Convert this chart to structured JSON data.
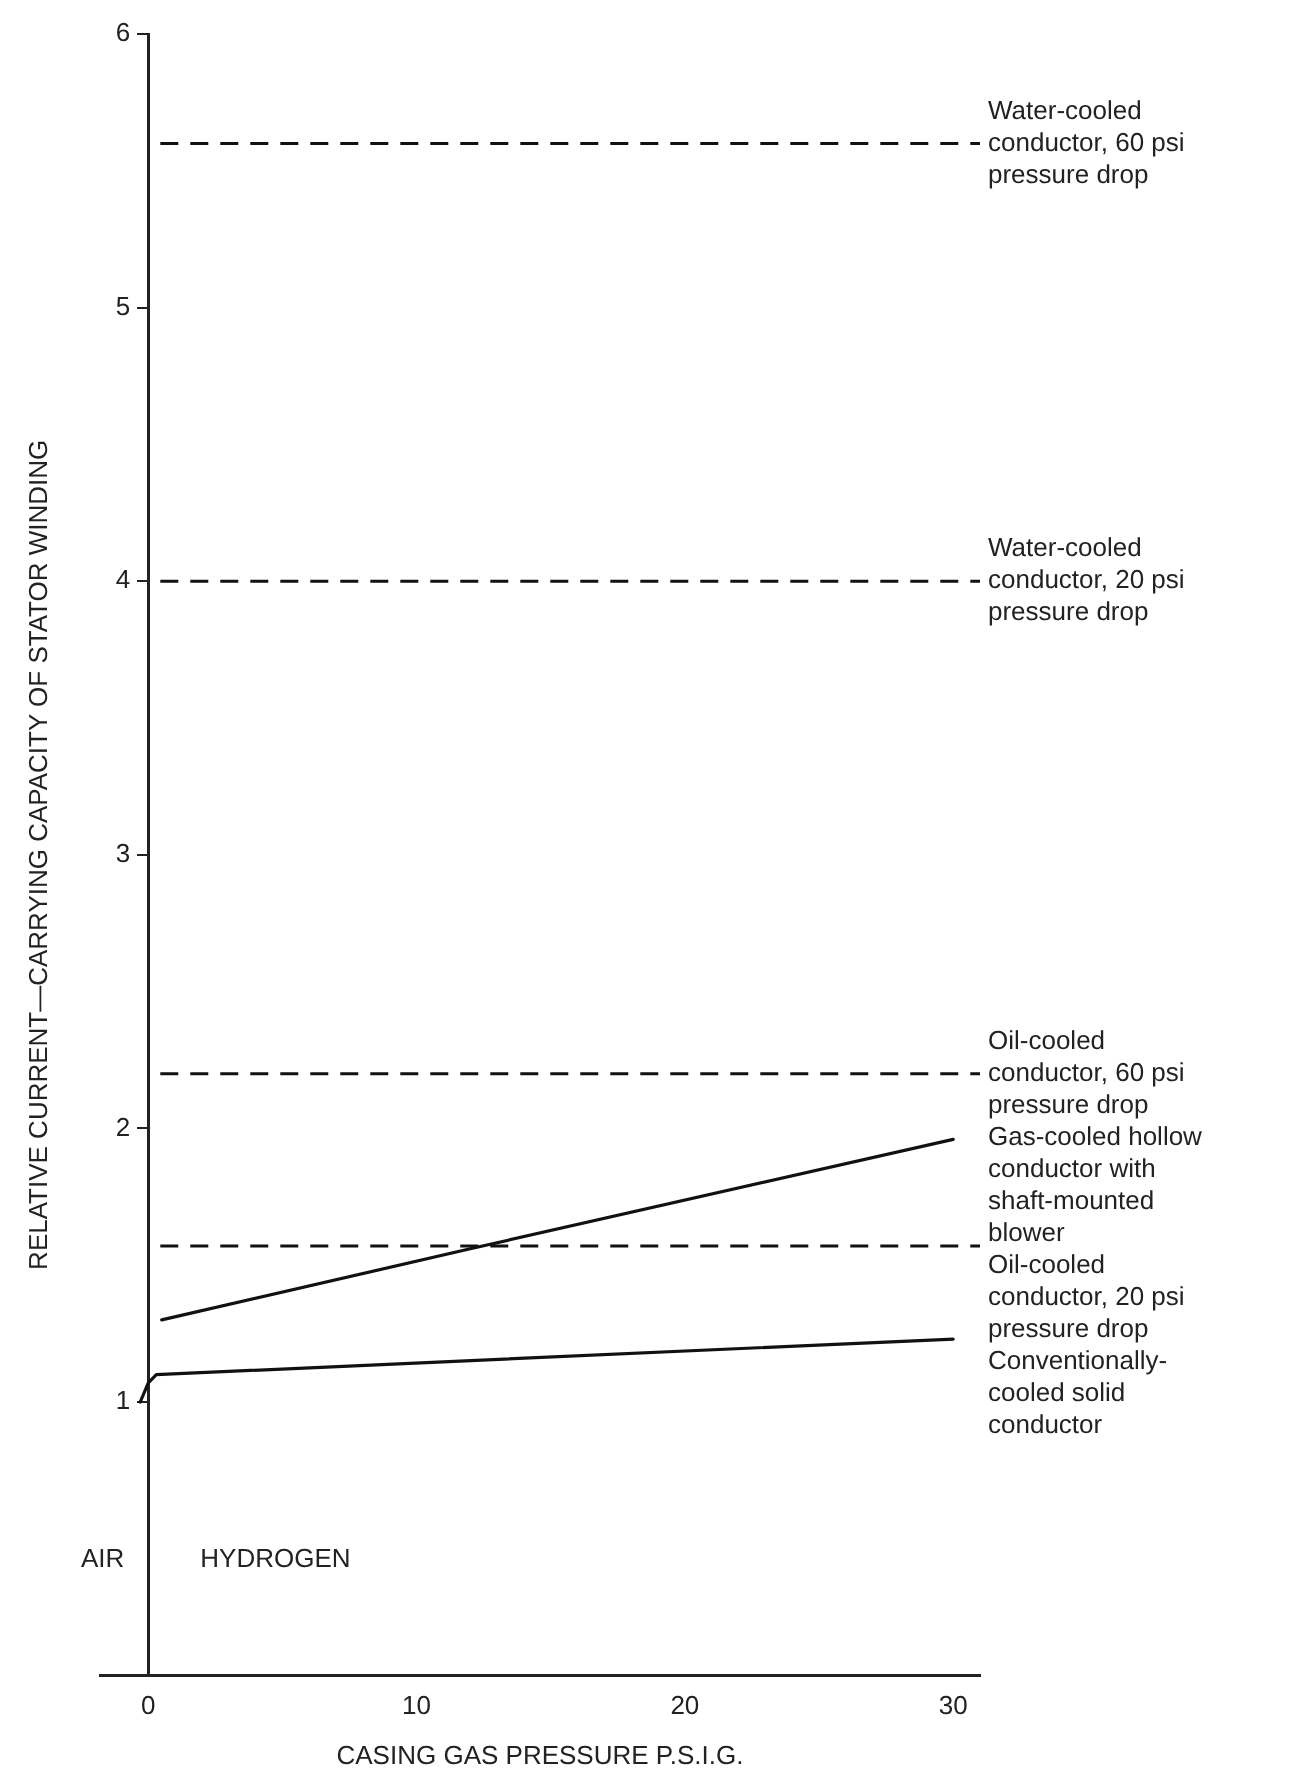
{
  "chart_data": {
    "type": "line",
    "xlabel": "CASING GAS PRESSURE P.S.I.G.",
    "ylabel": "RELATIVE CURRENT—CARRYING CAPACITY OF STATOR WINDING",
    "xlim": [
      -1.8,
      31
    ],
    "xticks": [
      0,
      10,
      20,
      30
    ],
    "ylim": [
      0,
      6
    ],
    "yticks": [
      1,
      2,
      3,
      4,
      5,
      6
    ],
    "grid": false,
    "legend": false,
    "marker": "none",
    "line_style": "solid",
    "series": [
      {
        "name": "Gas-cooled hollow conductor with shaft-mounted blower",
        "color": "#111111",
        "x": [
          0.5,
          12,
          30
        ],
        "values": [
          1.3,
          1.56,
          1.96
        ]
      },
      {
        "name": "Conventionally-cooled solid conductor",
        "color": "#111111",
        "x": [
          -0.3,
          0,
          0.3,
          30
        ],
        "values": [
          1.0,
          1.07,
          1.1,
          1.23
        ]
      }
    ],
    "ref_lines": [
      {
        "axis": "y",
        "value": 5.6,
        "label": "Water-cooled conductor, 60 psi pressure drop",
        "color": "#111111",
        "line_style": "dashed"
      },
      {
        "axis": "y",
        "value": 4.0,
        "label": "Water-cooled conductor, 20 psi pressure drop",
        "color": "#111111",
        "line_style": "dashed"
      },
      {
        "axis": "y",
        "value": 2.2,
        "label": "Oil-cooled conductor, 60 psi pressure drop",
        "color": "#111111",
        "line_style": "dashed"
      },
      {
        "axis": "y",
        "value": 1.57,
        "label": "Oil-cooled conductor, 20 psi pressure drop",
        "color": "#111111",
        "line_style": "dashed"
      }
    ],
    "annotations": [
      "AIR",
      "HYDROGEN"
    ]
  }
}
